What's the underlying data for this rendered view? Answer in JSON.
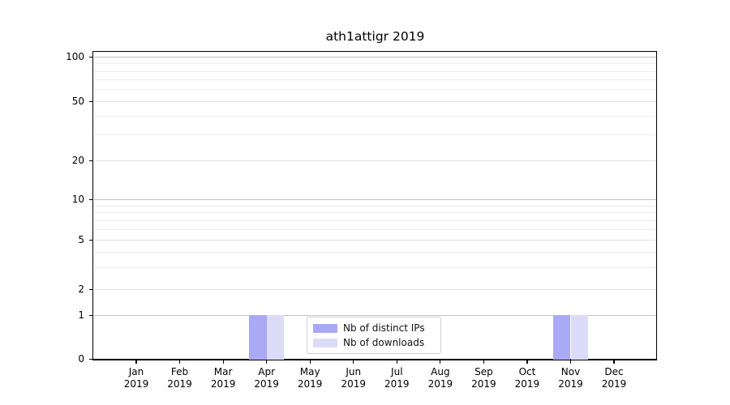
{
  "chart_data": {
    "type": "bar",
    "title": "ath1attigr 2019",
    "categories": [
      "Jan 2019",
      "Feb 2019",
      "Mar 2019",
      "Apr 2019",
      "May 2019",
      "Jun 2019",
      "Jul 2019",
      "Aug 2019",
      "Sep 2019",
      "Oct 2019",
      "Nov 2019",
      "Dec 2019"
    ],
    "series": [
      {
        "name": "Nb of distinct IPs",
        "color": "#a9a9f5",
        "values": [
          0,
          0,
          0,
          1,
          0,
          0,
          0,
          0,
          0,
          0,
          1,
          0
        ]
      },
      {
        "name": "Nb of downloads",
        "color": "#dcdcf8",
        "values": [
          0,
          0,
          0,
          1,
          0,
          0,
          0,
          0,
          0,
          0,
          1,
          0
        ]
      }
    ],
    "xlabel": "",
    "ylabel": "",
    "yscale": "symlog",
    "ylim": [
      0,
      100
    ],
    "ytick_labels": [
      "0",
      "1",
      "2",
      "5",
      "10",
      "20",
      "50",
      "100"
    ],
    "grid": "both",
    "legend_position": "lower center"
  }
}
